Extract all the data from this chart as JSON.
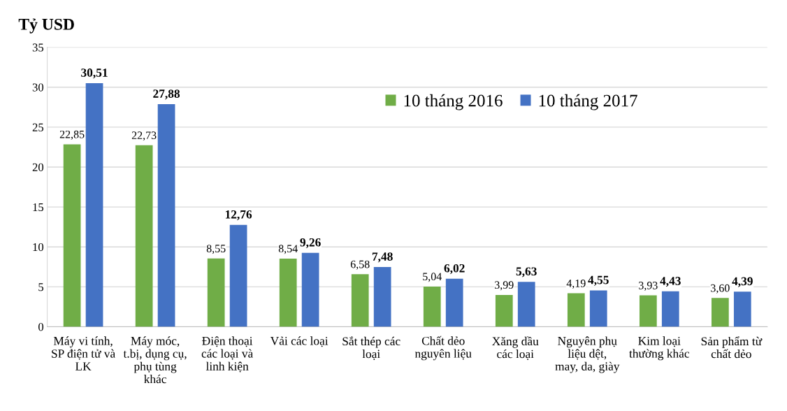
{
  "chart_data": {
    "type": "bar",
    "ylabel": "Tỷ USD",
    "categories": [
      "Máy vi tính,\nSP điện tử và\nLK",
      "Máy móc,\nt.bị, dụng cụ,\nphụ tùng\nkhác",
      "Điện thoại\ncác loại và\nlinh kiện",
      "Vải các loại",
      "Sắt thép các\nloại",
      "Chất dẻo\nnguyên liệu",
      "Xăng dầu\ncác loại",
      "Nguyên phụ\nliệu dệt,\nmay, da, giày",
      "Kim loại\nthường khác",
      "Sản phẩm từ\nchất dẻo"
    ],
    "series": [
      {
        "name": "10 tháng 2016",
        "color": "#70ad47",
        "values": [
          22.85,
          22.73,
          8.55,
          8.54,
          6.58,
          5.04,
          3.99,
          4.19,
          3.93,
          3.6
        ],
        "value_labels": [
          "22,85",
          "22,73",
          "8,55",
          "8,54",
          "6,58",
          "5,04",
          "3,99",
          "4,19",
          "3,93",
          "3,60"
        ]
      },
      {
        "name": "10 tháng 2017",
        "color": "#4472c4",
        "values": [
          30.51,
          27.88,
          12.76,
          9.26,
          7.48,
          6.02,
          5.63,
          4.55,
          4.43,
          4.39
        ],
        "value_labels": [
          "30,51",
          "27,88",
          "12,76",
          "9,26",
          "7,48",
          "6,02",
          "5,63",
          "4,55",
          "4,43",
          "4,39"
        ]
      }
    ],
    "ylim": [
      0,
      35
    ],
    "yticks": [
      0,
      5,
      10,
      15,
      20,
      25,
      30,
      35
    ],
    "grid": "y",
    "legend": "top right"
  }
}
